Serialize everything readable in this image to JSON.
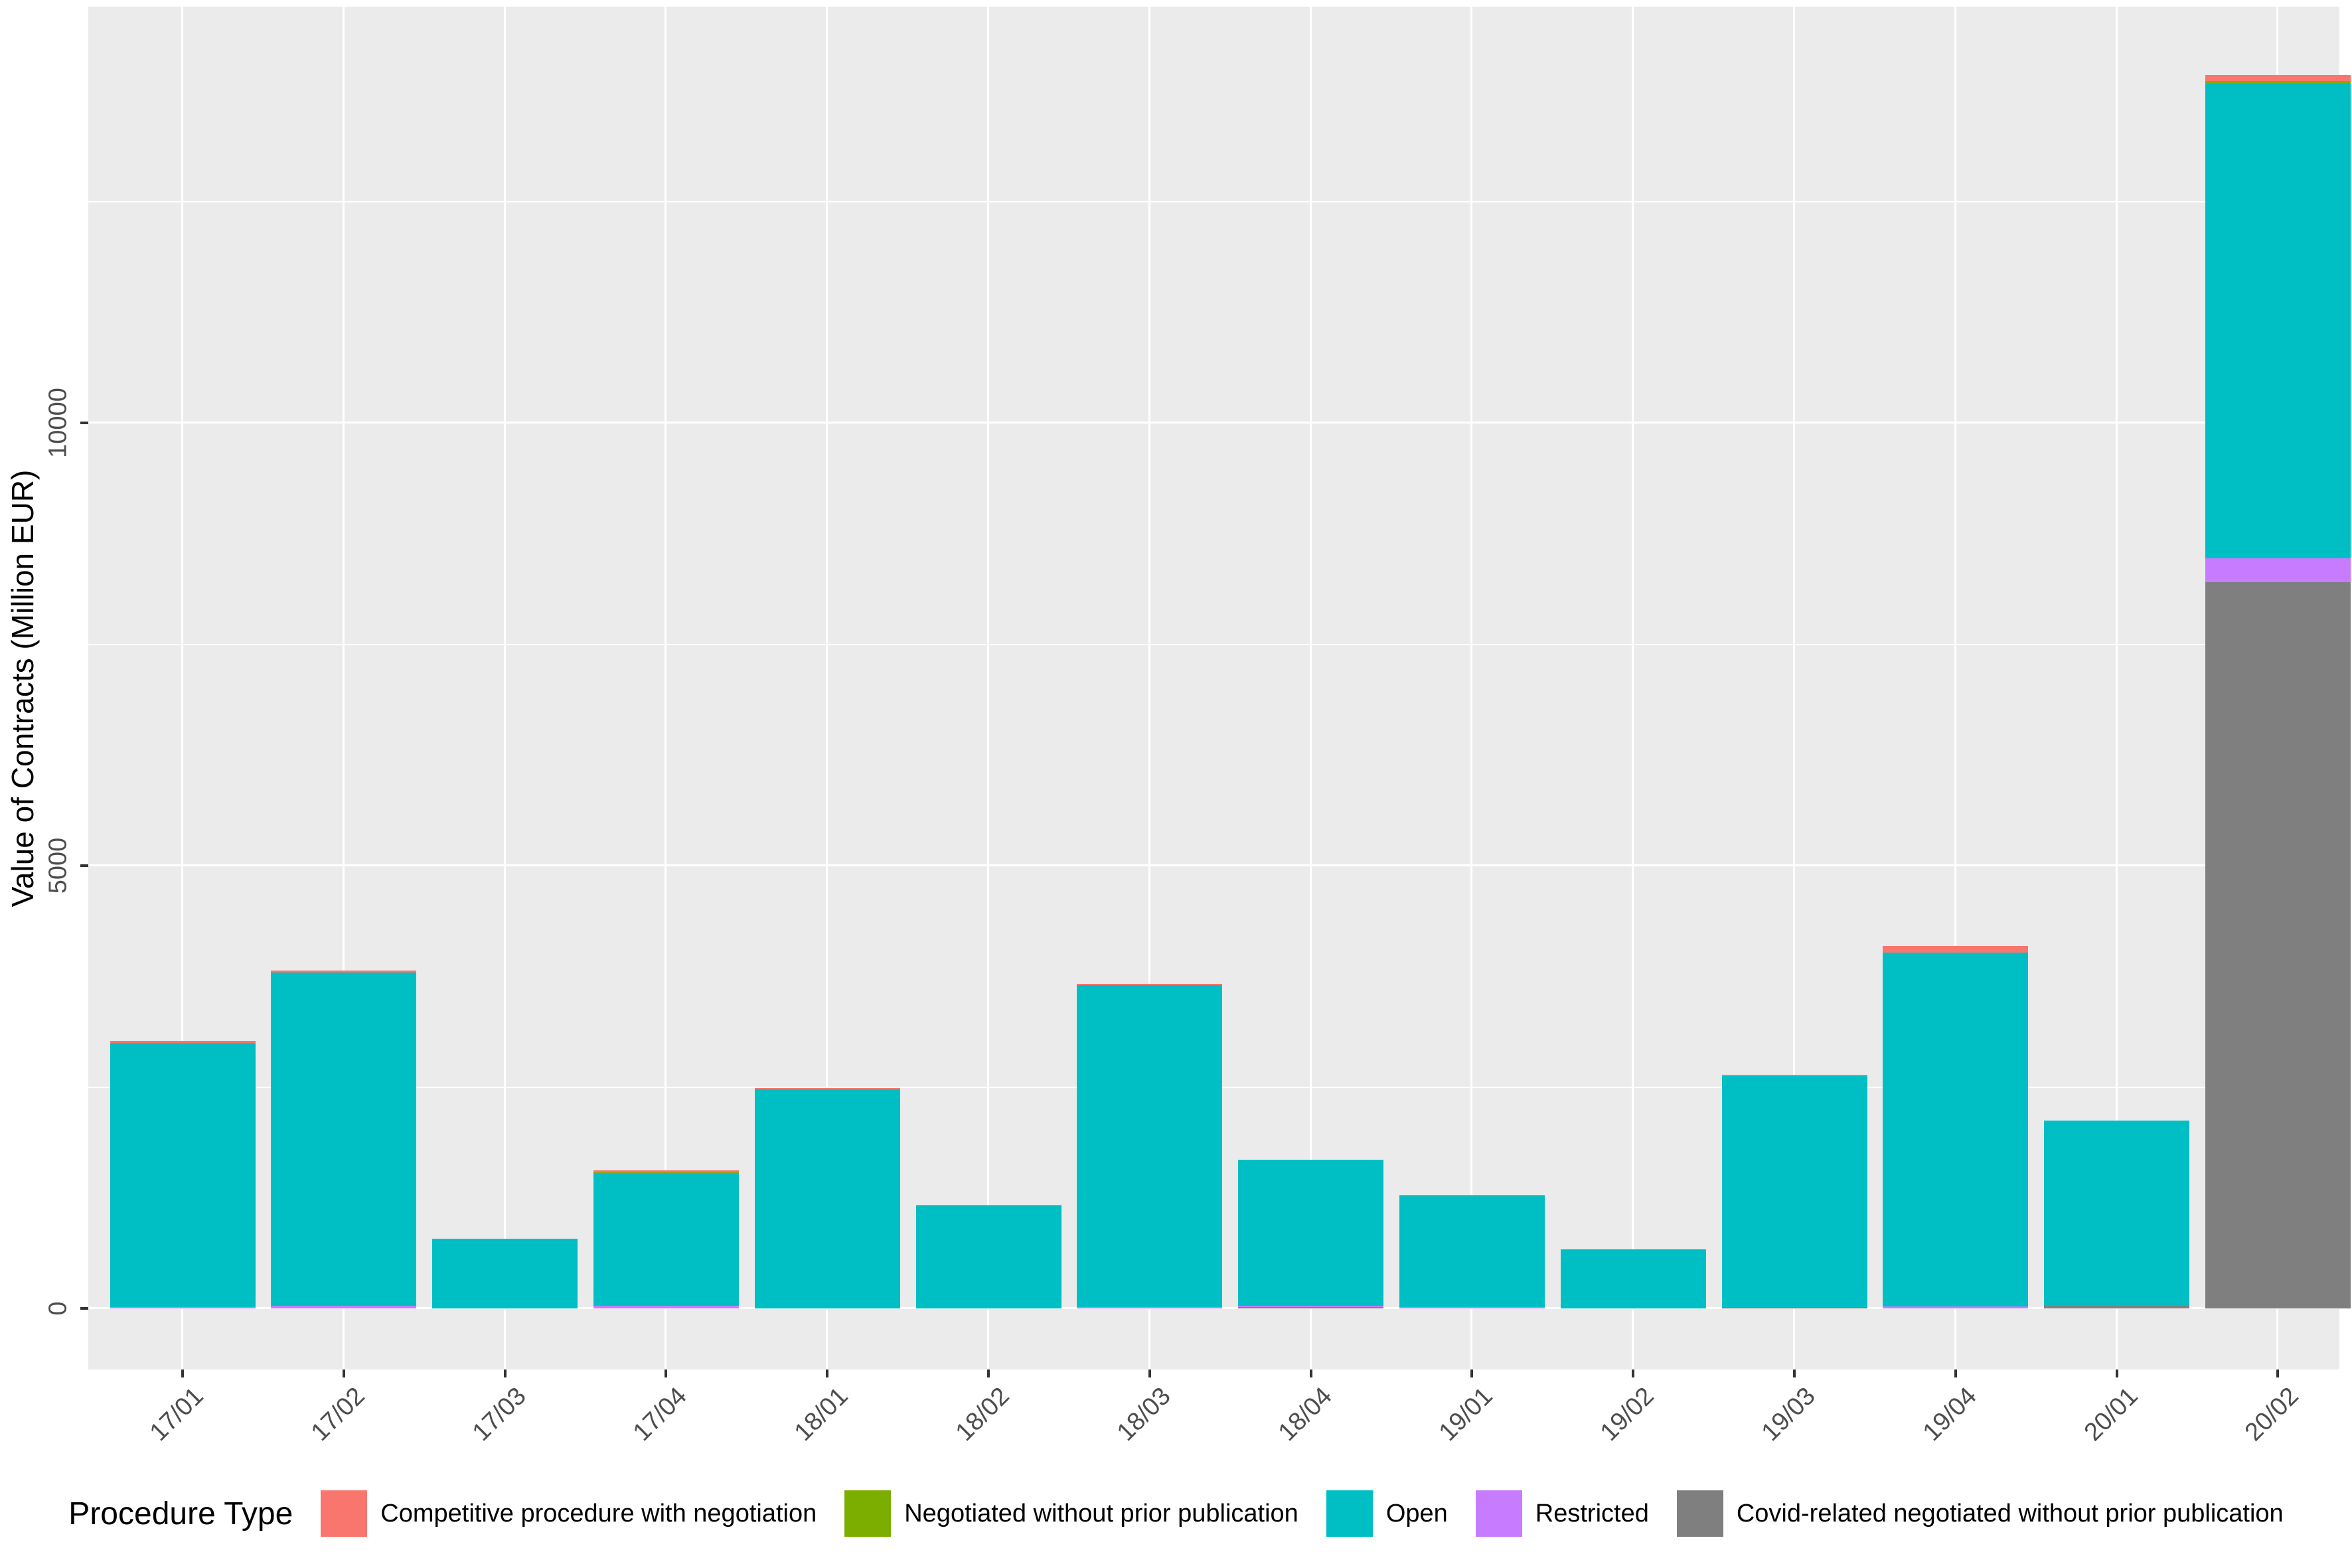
{
  "chart_data": {
    "type": "bar",
    "stacked": true,
    "title": "",
    "xlabel": "",
    "ylabel": "Value of Contracts (Million EUR)",
    "legend_title": "Procedure Type",
    "legend_position": "bottom",
    "grid": true,
    "panel_background": "#EBEBEB",
    "gridline_color": "#FFFFFF",
    "axis_text_color": "#4D4D4D",
    "tick_mark_color": "#333333",
    "ylim": [
      0,
      14700
    ],
    "y_ticks": [
      0,
      5000,
      10000
    ],
    "y_tick_labels": [
      "0",
      "5000",
      "10000"
    ],
    "y_minor_ticks": [
      2500,
      7500,
      12500
    ],
    "categories": [
      "17/01",
      "17/02",
      "17/03",
      "17/04",
      "18/01",
      "18/02",
      "18/03",
      "18/04",
      "19/01",
      "19/02",
      "19/03",
      "19/04",
      "20/01",
      "20/02"
    ],
    "series": [
      {
        "name": "Covid-related negotiated without prior publication",
        "color": "#7F7F7F",
        "values": [
          0,
          0,
          0,
          0,
          0,
          0,
          0,
          8,
          0,
          0,
          15,
          0,
          30,
          8200
        ]
      },
      {
        "name": "Restricted",
        "color": "#C77CFF",
        "values": [
          15,
          30,
          0,
          30,
          0,
          0,
          15,
          8,
          15,
          0,
          0,
          22,
          0,
          270
        ]
      },
      {
        "name": "Open",
        "color": "#00BFC4",
        "values": [
          2985,
          3766,
          790,
          1492,
          2474,
          1154,
          3636,
          1648,
          1252,
          665,
          2609,
          3996,
          2091,
          5367
        ]
      },
      {
        "name": "Negotiated without prior publication",
        "color": "#7CAE00",
        "values": [
          0,
          0,
          0,
          15,
          0,
          0,
          0,
          0,
          0,
          0,
          0,
          0,
          0,
          20
        ]
      },
      {
        "name": "Competitive procedure with negotiation",
        "color": "#F8766D",
        "values": [
          20,
          20,
          0,
          22,
          15,
          15,
          15,
          0,
          15,
          0,
          15,
          75,
          0,
          67
        ]
      }
    ],
    "totals": [
      3020,
      3816,
      790,
      1559,
      2489,
      1169,
      3666,
      1664,
      1282,
      665,
      2639,
      4093,
      2121,
      13924
    ],
    "legend_entries": [
      {
        "label": "Competitive procedure with negotiation",
        "color": "#F8766D"
      },
      {
        "label": "Negotiated without prior publication",
        "color": "#7CAE00"
      },
      {
        "label": "Open",
        "color": "#00BFC4"
      },
      {
        "label": "Restricted",
        "color": "#C77CFF"
      },
      {
        "label": "Covid-related negotiated without prior publication",
        "color": "#7F7F7F"
      }
    ]
  }
}
